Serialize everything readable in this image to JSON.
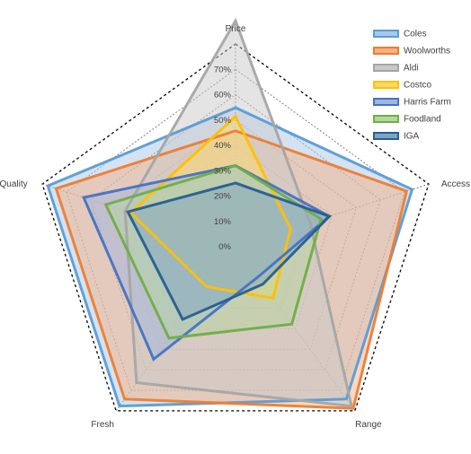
{
  "chart_data": {
    "type": "radar",
    "title": "",
    "axes": [
      "Price",
      "Access",
      "Range",
      "Fresh",
      "Quality"
    ],
    "ticks": [
      "0%",
      "10%",
      "20%",
      "30%",
      "40%",
      "50%",
      "60%",
      "70%"
    ],
    "rmax": 0.7,
    "grid": true,
    "legend_position": "top-right",
    "series": [
      {
        "name": "Coles",
        "values": [
          0.48,
          0.64,
          0.65,
          0.68,
          0.68
        ],
        "color": "#5b9bd5",
        "fill": "#a9c8ea"
      },
      {
        "name": "Woolworths",
        "values": [
          0.4,
          0.62,
          0.69,
          0.65,
          0.65
        ],
        "color": "#ed7d31",
        "fill": "#f4b183"
      },
      {
        "name": "Aldi",
        "values": [
          0.78,
          0.27,
          0.68,
          0.58,
          0.4
        ],
        "color": "#a5a5a5",
        "fill": "#c9c9c9"
      },
      {
        "name": "Costco",
        "values": [
          0.45,
          0.2,
          0.22,
          0.17,
          0.38
        ],
        "color": "#ffc000",
        "fill": "#ffd966"
      },
      {
        "name": "Harris Farm",
        "values": [
          0.28,
          0.34,
          0.13,
          0.48,
          0.55
        ],
        "color": "#4472c4",
        "fill": "#9fb6e0"
      },
      {
        "name": "Foodland",
        "values": [
          0.28,
          0.31,
          0.33,
          0.39,
          0.47
        ],
        "color": "#70ad47",
        "fill": "#b5d6a0"
      },
      {
        "name": "IGA",
        "values": [
          0.22,
          0.34,
          0.16,
          0.31,
          0.39
        ],
        "color": "#255e91",
        "fill": "#7fa3c4"
      }
    ]
  }
}
